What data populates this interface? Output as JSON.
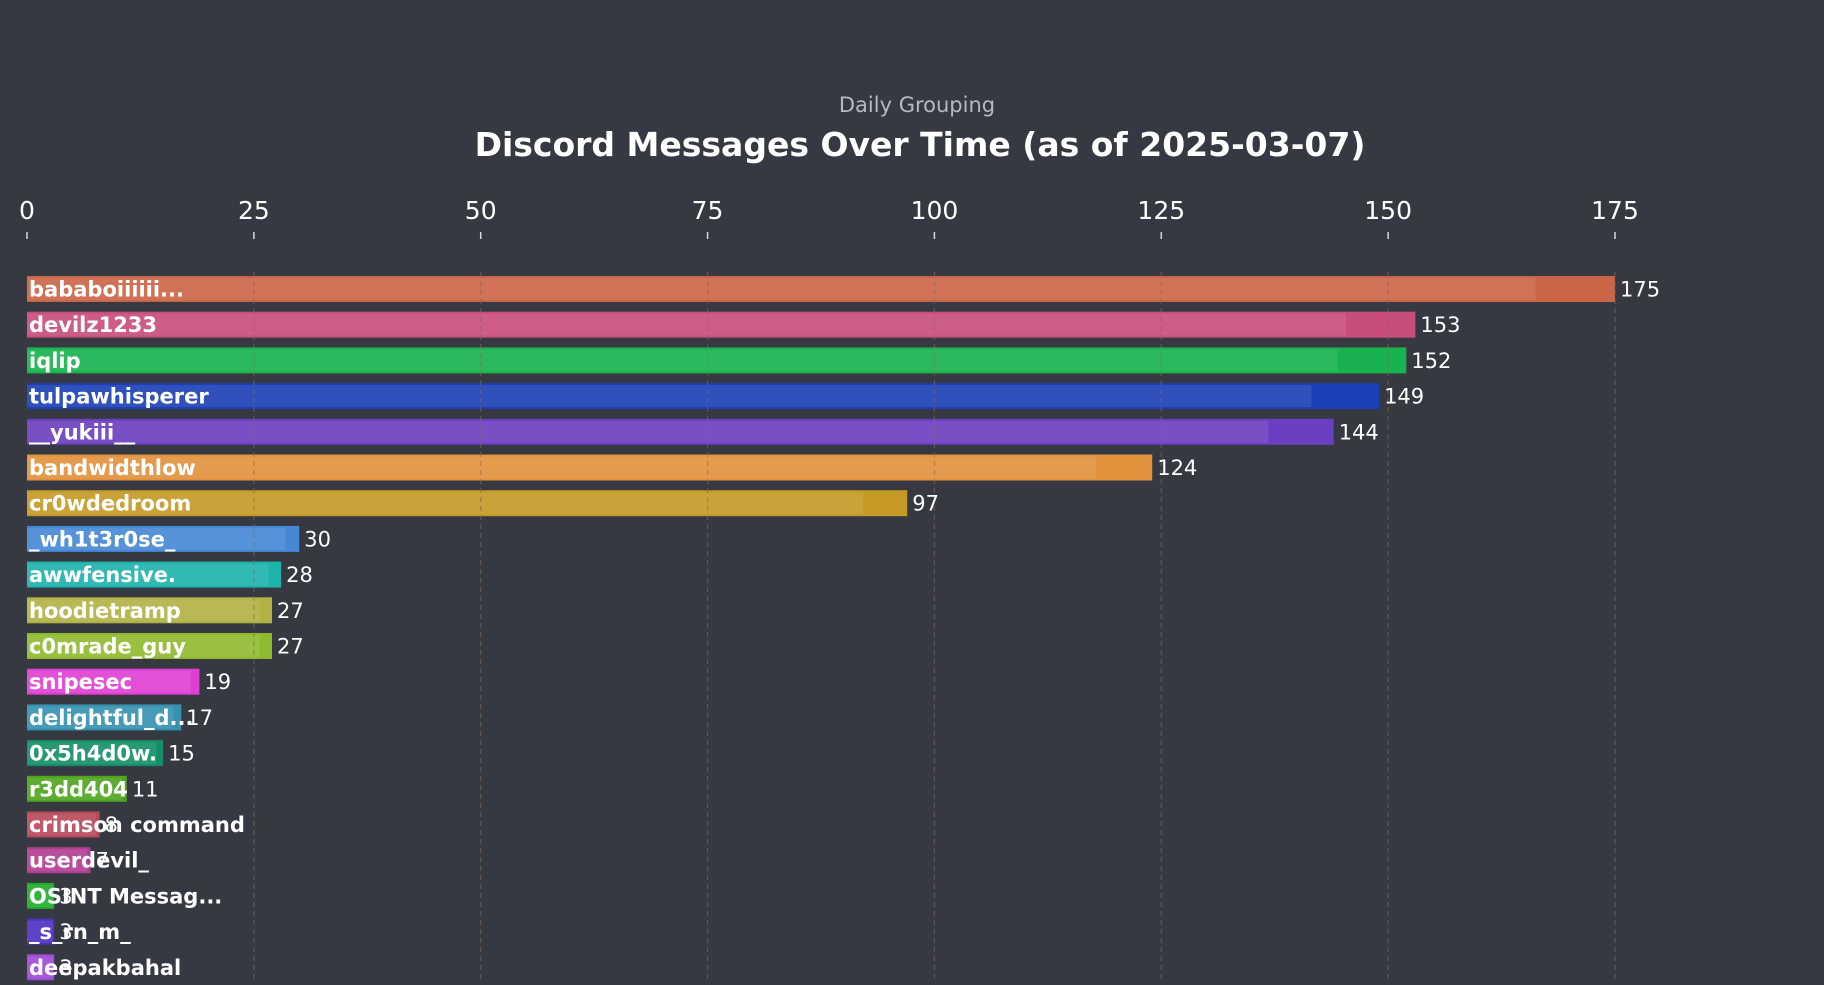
{
  "chart_data": {
    "type": "bar",
    "orientation": "horizontal",
    "subtitle": "Daily Grouping",
    "title": "Discord Messages Over Time (as of 2025-03-07)",
    "xlim": [
      0,
      175
    ],
    "x_ticks": [
      0,
      25,
      50,
      75,
      100,
      125,
      150,
      175
    ],
    "grid": true,
    "x_axis_position": "top",
    "bars": [
      {
        "label": "bababoiiiiii...",
        "value": 175,
        "color": "#cb6548"
      },
      {
        "label": "devilz1233",
        "value": 153,
        "color": "#c84d7a"
      },
      {
        "label": "iqlip",
        "value": 152,
        "color": "#18b34e"
      },
      {
        "label": "tulpawhisperer",
        "value": 149,
        "color": "#1c3fb6"
      },
      {
        "label": "__yukiii__",
        "value": 144,
        "color": "#6a3fc1"
      },
      {
        "label": "bandwidthlow",
        "value": 124,
        "color": "#e3923c"
      },
      {
        "label": "cr0wdedroom",
        "value": 97,
        "color": "#c49a24"
      },
      {
        "label": "_wh1t3r0se_",
        "value": 30,
        "color": "#4688d4"
      },
      {
        "label": "awwfensive.",
        "value": 28,
        "color": "#1fb3ad"
      },
      {
        "label": "hoodietramp",
        "value": 27,
        "color": "#b1b244"
      },
      {
        "label": "c0mrade_guy",
        "value": 27,
        "color": "#8fba2e"
      },
      {
        "label": "snipesec",
        "value": 19,
        "color": "#df3fd3"
      },
      {
        "label": "delightful_d...",
        "value": 17,
        "color": "#3592af"
      },
      {
        "label": "0x5h4d0w.",
        "value": 15,
        "color": "#138f67"
      },
      {
        "label": "r3dd404",
        "value": 11,
        "color": "#4da51f"
      },
      {
        "label": "crimson command",
        "value": 8,
        "color": "#b9485a"
      },
      {
        "label": "userdevil_",
        "value": 7,
        "color": "#b13d94"
      },
      {
        "label": "OSINT Messag...",
        "value": 3,
        "color": "#1fad2b"
      },
      {
        "label": "_s_rn_m_",
        "value": 3,
        "color": "#4d31c2"
      },
      {
        "label": "deepakbahal",
        "value": 3,
        "color": "#9e49d6"
      }
    ]
  }
}
